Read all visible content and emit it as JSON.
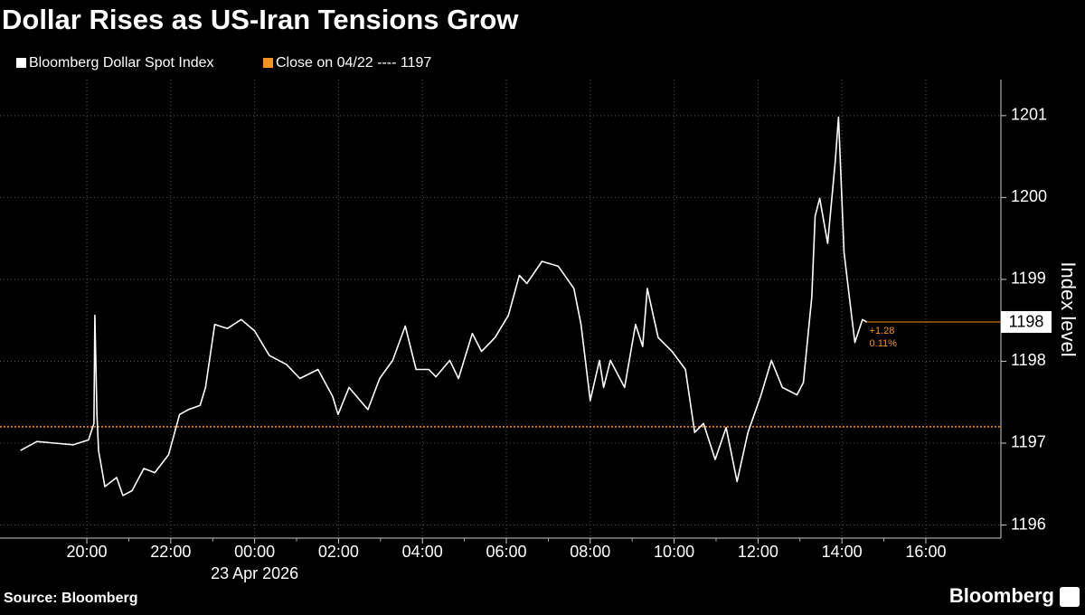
{
  "chart_data": {
    "type": "line",
    "title": "Dollar Rises as US-Iran Tensions Grow",
    "y_label": "Index level",
    "date_label": "23 Apr 2026",
    "source": "Source: Bloomberg",
    "brand": "Bloomberg",
    "x": [
      -5.58,
      -5.19,
      -4.76,
      -4.32,
      -3.96,
      -3.83,
      -3.81,
      -3.76,
      -3.72,
      -3.57,
      -3.29,
      -3.14,
      -2.92,
      -2.64,
      -2.38,
      -2.05,
      -1.79,
      -1.58,
      -1.3,
      -1.17,
      -0.95,
      -0.65,
      -0.32,
      0,
      0.35,
      0.76,
      1.08,
      1.51,
      1.86,
      1.99,
      2.25,
      2.7,
      2.98,
      3.29,
      3.59,
      3.85,
      4.15,
      4.32,
      4.65,
      4.86,
      5.19,
      5.41,
      5.73,
      6.05,
      6.31,
      6.49,
      6.85,
      7.24,
      7.61,
      7.78,
      8.0,
      8.22,
      8.32,
      8.48,
      8.82,
      9.08,
      9.25,
      9.36,
      9.62,
      9.95,
      10.27,
      10.49,
      10.7,
      10.98,
      11.24,
      11.5,
      11.76,
      12.06,
      12.32,
      12.58,
      12.93,
      13.08,
      13.28,
      13.36,
      13.47,
      13.66,
      13.84,
      13.92,
      14.05,
      14.23,
      14.31,
      14.49,
      14.59
    ],
    "series": [
      {
        "name": "Bloomberg Dollar Spot Index",
        "color": "#ffffff",
        "values": [
          1196.91,
          1197.02,
          1197.0,
          1196.98,
          1197.04,
          1197.24,
          1198.56,
          1197.35,
          1196.91,
          1196.47,
          1196.58,
          1196.36,
          1196.42,
          1196.69,
          1196.64,
          1196.86,
          1197.35,
          1197.41,
          1197.46,
          1197.68,
          1198.45,
          1198.4,
          1198.51,
          1198.37,
          1198.07,
          1197.96,
          1197.79,
          1197.9,
          1197.57,
          1197.35,
          1197.68,
          1197.41,
          1197.79,
          1198.01,
          1198.43,
          1197.9,
          1197.9,
          1197.81,
          1198.01,
          1197.79,
          1198.34,
          1198.12,
          1198.29,
          1198.56,
          1199.05,
          1198.95,
          1199.22,
          1199.16,
          1198.89,
          1198.45,
          1197.52,
          1198.01,
          1197.68,
          1198.01,
          1197.68,
          1198.45,
          1198.18,
          1198.89,
          1198.29,
          1198.12,
          1197.9,
          1197.13,
          1197.24,
          1196.8,
          1197.19,
          1196.53,
          1197.13,
          1197.57,
          1198.01,
          1197.68,
          1197.59,
          1197.74,
          1198.78,
          1199.77,
          1199.99,
          1199.44,
          1200.43,
          1200.98,
          1199.33,
          1198.56,
          1198.23,
          1198.51,
          1198.48
        ]
      }
    ],
    "reference_line": {
      "value": 1197.2,
      "label": "Close on 04/22 ---- 1197",
      "color": "#f7931e"
    },
    "last_price": {
      "value": 1198.48,
      "label": "1198",
      "change": "+1.28",
      "change_pct": "0.11%"
    },
    "xlim": [
      -6.07,
      17.79
    ],
    "xticks": [
      {
        "value": -4,
        "label": "20:00"
      },
      {
        "value": -2,
        "label": "22:00"
      },
      {
        "value": 0,
        "label": "00:00"
      },
      {
        "value": 2,
        "label": "02:00"
      },
      {
        "value": 4,
        "label": "04:00"
      },
      {
        "value": 6,
        "label": "06:00"
      },
      {
        "value": 8,
        "label": "08:00"
      },
      {
        "value": 10,
        "label": "10:00"
      },
      {
        "value": 12,
        "label": "12:00"
      },
      {
        "value": 14,
        "label": "14:00"
      },
      {
        "value": 16,
        "label": "16:00"
      }
    ],
    "ylim": [
      1195.84,
      1201.44
    ],
    "yticks": [
      1196,
      1197,
      1198,
      1199,
      1200,
      1201
    ],
    "grid": true
  }
}
